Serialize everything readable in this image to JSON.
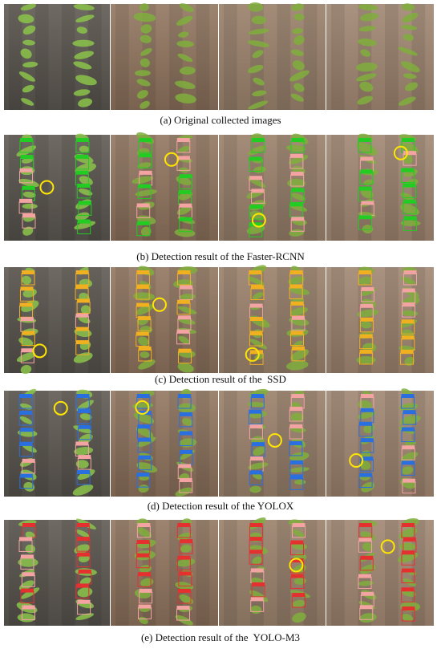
{
  "rows": [
    {
      "caption": "(a) Original collected images"
    },
    {
      "caption": "(b) Detection result of the Faster-RCNN"
    },
    {
      "caption": "(c) Detection result of the  SSD"
    },
    {
      "caption": "(d) Detection result of the YOLOX"
    },
    {
      "caption": "(e) Detection result of the  YOLO-M3"
    }
  ]
}
